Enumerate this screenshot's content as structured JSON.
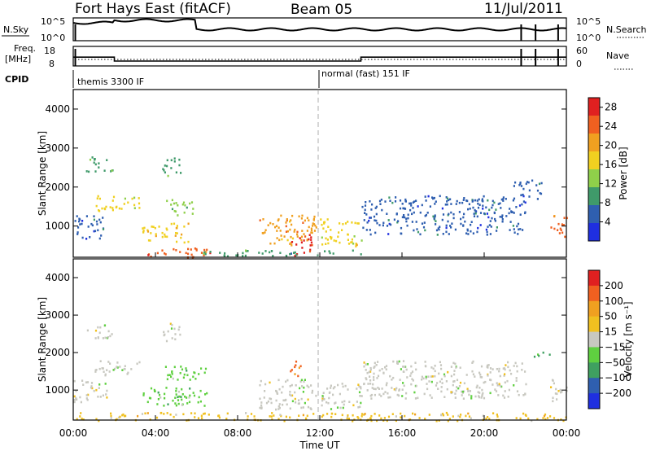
{
  "header": {
    "station": "Fort Hays East (fitACF)",
    "beam": "Beam 05",
    "date": "11/Jul/2011"
  },
  "status_panels": {
    "nsky_label": "N.Sky",
    "nsky_ticks": [
      "10^5",
      "10^0"
    ],
    "nsearch_label": "N.Search",
    "nsearch_ticks": [
      "10^5",
      "10^0"
    ],
    "freq_label_line1": "Freq.",
    "freq_label_line2": "[MHz]",
    "freq_ticks": [
      "18",
      "8"
    ],
    "nave_label": "Nave",
    "nave_ticks": [
      "60",
      "0"
    ],
    "cpid_label": "CPID",
    "cpid_segments": [
      {
        "start_hour": 0,
        "label": "themis 3300 IF"
      },
      {
        "start_hour": 12,
        "label": "normal (fast) 151 IF"
      }
    ],
    "freq_step_hours": [
      0,
      2,
      14,
      24
    ],
    "freq_levels_mhz": [
      12.5,
      10.5,
      12.5
    ]
  },
  "chart_data": [
    {
      "type": "heatmap",
      "name": "power",
      "ylabel": "Slant Range [km]",
      "yticks": [
        "1000",
        "2000",
        "3000",
        "4000"
      ],
      "ylim": [
        200,
        4500
      ],
      "xlim": [
        0,
        24
      ],
      "colorbar_label": "Power [dB]",
      "colorbar_ticks": [
        "4",
        "8",
        "12",
        "16",
        "20",
        "24",
        "28"
      ],
      "colorbar_range": [
        0,
        30
      ],
      "colors": [
        "#1f2fe0",
        "#2f5fb0",
        "#3f9a6a",
        "#8fd04a",
        "#f0d020",
        "#f0a020",
        "#f06020",
        "#e02020"
      ],
      "blobs": [
        {
          "t0": 0.0,
          "t1": 1.6,
          "r0": 700,
          "r1": 1300,
          "level": 1
        },
        {
          "t0": 0.6,
          "t1": 1.9,
          "r0": 2400,
          "r1": 2800,
          "level": 2
        },
        {
          "t0": 1.0,
          "t1": 3.2,
          "r0": 1400,
          "r1": 1800,
          "level": 4
        },
        {
          "t0": 3.3,
          "t1": 5.6,
          "r0": 600,
          "r1": 1100,
          "level": 4
        },
        {
          "t0": 3.6,
          "t1": 6.8,
          "r0": 200,
          "r1": 450,
          "level": 6
        },
        {
          "t0": 4.3,
          "t1": 5.2,
          "r0": 2300,
          "r1": 2800,
          "level": 2
        },
        {
          "t0": 4.4,
          "t1": 5.8,
          "r0": 1300,
          "r1": 1700,
          "level": 3
        },
        {
          "t0": 9.0,
          "t1": 11.8,
          "r0": 500,
          "r1": 1300,
          "level": 5
        },
        {
          "t0": 10.6,
          "t1": 11.6,
          "r0": 250,
          "r1": 800,
          "level": 7
        },
        {
          "t0": 12.0,
          "t1": 14.0,
          "r0": 500,
          "r1": 1200,
          "level": 4
        },
        {
          "t0": 14.0,
          "t1": 22.0,
          "r0": 800,
          "r1": 1800,
          "level": 1
        },
        {
          "t0": 6.0,
          "t1": 14.0,
          "r0": 250,
          "r1": 400,
          "level": 2
        },
        {
          "t0": 23.2,
          "t1": 24.0,
          "r0": 700,
          "r1": 1300,
          "level": 6
        },
        {
          "t0": 21.4,
          "t1": 22.8,
          "r0": 1700,
          "r1": 2200,
          "level": 1
        }
      ]
    },
    {
      "type": "heatmap",
      "name": "velocity",
      "ylabel": "Slant Range [km]",
      "yticks": [
        "1000",
        "2000",
        "3000",
        "4000"
      ],
      "ylim": [
        200,
        4500
      ],
      "xlim": [
        0,
        24
      ],
      "xticks": [
        "00:00",
        "04:00",
        "08:00",
        "12:00",
        "16:00",
        "20:00",
        "00:00"
      ],
      "xlabel": "Time UT",
      "colorbar_label": "Velocity [m s⁻¹]",
      "colorbar_ticks": [
        "200",
        "100",
        "50",
        "15",
        "−15",
        "−50",
        "−100",
        "−200"
      ],
      "colors": [
        "#1f2fe0",
        "#2f5fb0",
        "#3fa060",
        "#5fd040",
        "#c8c8c0",
        "#f0c020",
        "#f0a020",
        "#f06020",
        "#e02020"
      ],
      "blobs": [
        {
          "t0": 0.0,
          "t1": 1.6,
          "r0": 700,
          "r1": 1300,
          "level": 4
        },
        {
          "t0": 0.6,
          "t1": 1.9,
          "r0": 2400,
          "r1": 2800,
          "level": 4
        },
        {
          "t0": 1.0,
          "t1": 3.2,
          "r0": 1400,
          "r1": 1800,
          "level": 4
        },
        {
          "t0": 3.3,
          "t1": 6.5,
          "r0": 600,
          "r1": 1100,
          "level": 3
        },
        {
          "t0": 4.3,
          "t1": 5.2,
          "r0": 2300,
          "r1": 2800,
          "level": 4
        },
        {
          "t0": 4.4,
          "t1": 6.5,
          "r0": 1300,
          "r1": 1700,
          "level": 3
        },
        {
          "t0": 9.0,
          "t1": 11.8,
          "r0": 500,
          "r1": 1300,
          "level": 4
        },
        {
          "t0": 10.4,
          "t1": 11.1,
          "r0": 1400,
          "r1": 1800,
          "level": 7
        },
        {
          "t0": 12.0,
          "t1": 14.0,
          "r0": 500,
          "r1": 1200,
          "level": 4
        },
        {
          "t0": 14.0,
          "t1": 22.0,
          "r0": 800,
          "r1": 1800,
          "level": 4
        },
        {
          "t0": 0.0,
          "t1": 24.0,
          "r0": 200,
          "r1": 420,
          "level": 5
        },
        {
          "t0": 23.2,
          "t1": 24.0,
          "r0": 700,
          "r1": 1300,
          "level": 4
        },
        {
          "t0": 22.4,
          "t1": 23.2,
          "r0": 1900,
          "r1": 2100,
          "level": 2
        }
      ]
    }
  ]
}
